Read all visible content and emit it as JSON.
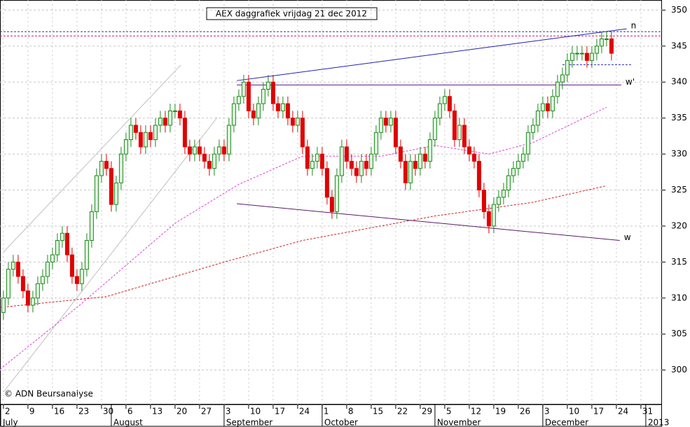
{
  "chart_data": {
    "type": "candlestick",
    "title": "AEX daggrafiek vrijdag 21 dec 2012",
    "copyright": "© ADN Beursanalyse",
    "x": [
      0,
      1,
      2,
      3,
      4,
      5,
      6,
      7,
      8,
      9,
      10,
      11,
      12,
      13,
      14,
      15,
      16,
      17,
      18,
      19,
      20,
      21,
      22,
      23,
      24,
      25,
      26,
      27,
      28,
      29,
      30,
      31,
      32,
      33,
      34,
      35,
      36,
      37,
      38,
      39,
      40,
      41,
      42,
      43,
      44,
      45,
      46,
      47,
      48,
      49,
      50,
      51,
      52,
      53,
      54,
      55,
      56,
      57,
      58,
      59,
      60,
      61,
      62,
      63,
      64,
      65,
      66,
      67,
      68,
      69,
      70,
      71,
      72,
      73,
      74,
      75,
      76,
      77,
      78,
      79,
      80,
      81,
      82,
      83,
      84,
      85,
      86,
      87,
      88,
      89,
      90,
      91,
      92,
      93,
      94,
      95,
      96,
      97,
      98,
      99,
      100,
      101,
      102,
      103,
      104,
      105,
      106,
      107,
      108,
      109,
      110,
      111,
      112,
      113,
      114,
      115,
      116,
      117,
      118,
      119,
      120,
      121,
      122,
      123,
      124
    ],
    "open": [
      308,
      310,
      314,
      315,
      313,
      311,
      309,
      310,
      312,
      313,
      315,
      316,
      318,
      319,
      316,
      313,
      312,
      314,
      318,
      322,
      327,
      329,
      328,
      323,
      326,
      330,
      332,
      334,
      333,
      331,
      333,
      332,
      334,
      335,
      334,
      336,
      336,
      335,
      331,
      330,
      331,
      330,
      329,
      328,
      330,
      331,
      330,
      334,
      337,
      338,
      340,
      336,
      335,
      337,
      339,
      340,
      337,
      336,
      337,
      335,
      334,
      335,
      331,
      328,
      329,
      330,
      328,
      324,
      322,
      327,
      331,
      329,
      328,
      327,
      329,
      328,
      330,
      333,
      335,
      334,
      335,
      331,
      329,
      326,
      329,
      328,
      330,
      329,
      332,
      335,
      337,
      338,
      336,
      332,
      334,
      331,
      330,
      329,
      325,
      322,
      320,
      323,
      324,
      325,
      327,
      328,
      329,
      330,
      333,
      334,
      336,
      337,
      336,
      338,
      340,
      341,
      343,
      344,
      344,
      344,
      343,
      344,
      345,
      346,
      346
    ],
    "high": [
      311,
      315,
      316,
      316,
      314,
      312,
      311,
      313,
      314,
      316,
      317,
      319,
      320,
      320,
      317,
      314,
      315,
      319,
      323,
      328,
      330,
      330,
      329,
      327,
      331,
      333,
      335,
      335,
      334,
      334,
      334,
      335,
      336,
      336,
      337,
      337,
      337,
      336,
      332,
      332,
      332,
      331,
      330,
      331,
      332,
      332,
      335,
      338,
      339,
      341,
      341,
      337,
      338,
      340,
      341,
      341,
      338,
      338,
      338,
      336,
      336,
      336,
      332,
      330,
      331,
      331,
      329,
      325,
      328,
      332,
      332,
      330,
      329,
      330,
      330,
      331,
      334,
      336,
      336,
      336,
      336,
      332,
      330,
      330,
      330,
      331,
      331,
      333,
      336,
      338,
      339,
      339,
      337,
      335,
      335,
      332,
      331,
      330,
      326,
      323,
      324,
      325,
      326,
      328,
      329,
      330,
      331,
      334,
      335,
      337,
      338,
      338,
      339,
      341,
      342,
      344,
      345,
      345,
      345,
      345,
      345,
      346,
      347,
      347,
      347
    ],
    "low": [
      307,
      309,
      313,
      312,
      310,
      308,
      308,
      309,
      311,
      312,
      314,
      315,
      317,
      315,
      312,
      311,
      311,
      313,
      317,
      321,
      326,
      327,
      322,
      322,
      325,
      329,
      331,
      332,
      330,
      330,
      331,
      331,
      333,
      333,
      333,
      335,
      334,
      330,
      329,
      329,
      329,
      328,
      327,
      327,
      329,
      329,
      329,
      333,
      336,
      337,
      335,
      334,
      334,
      336,
      338,
      336,
      335,
      335,
      334,
      333,
      333,
      330,
      327,
      327,
      328,
      327,
      323,
      321,
      321,
      326,
      328,
      327,
      326,
      326,
      327,
      327,
      329,
      332,
      333,
      333,
      330,
      328,
      325,
      325,
      327,
      327,
      328,
      328,
      331,
      334,
      336,
      335,
      331,
      331,
      330,
      329,
      328,
      324,
      321,
      319,
      319,
      322,
      323,
      324,
      326,
      327,
      328,
      329,
      332,
      333,
      335,
      335,
      335,
      337,
      339,
      340,
      342,
      343,
      343,
      342,
      342,
      343,
      344,
      345,
      343
    ],
    "close": [
      310,
      314,
      315,
      313,
      311,
      309,
      310,
      312,
      313,
      315,
      316,
      318,
      319,
      316,
      313,
      312,
      314,
      318,
      322,
      327,
      329,
      328,
      323,
      326,
      330,
      332,
      334,
      333,
      331,
      333,
      332,
      334,
      335,
      334,
      336,
      336,
      335,
      331,
      330,
      331,
      330,
      329,
      328,
      330,
      331,
      330,
      334,
      337,
      338,
      340,
      336,
      335,
      337,
      339,
      340,
      337,
      336,
      337,
      335,
      334,
      335,
      331,
      328,
      329,
      330,
      328,
      324,
      322,
      327,
      331,
      329,
      328,
      327,
      329,
      328,
      330,
      333,
      335,
      334,
      335,
      331,
      329,
      326,
      329,
      328,
      330,
      329,
      332,
      335,
      337,
      338,
      336,
      332,
      334,
      331,
      330,
      329,
      325,
      322,
      320,
      323,
      324,
      325,
      327,
      328,
      329,
      330,
      333,
      334,
      336,
      337,
      336,
      338,
      340,
      341,
      343,
      344,
      344,
      344,
      343,
      344,
      345,
      346,
      346,
      344
    ],
    "up_color": "#1a8a1a",
    "down_color": "#e00000",
    "moving_averages": [
      {
        "color": "#e040e0",
        "x": [
          -0.7,
          15,
          35,
          48,
          61,
          77,
          88,
          99,
          108,
          123
        ],
        "values": [
          300.1,
          308.7,
          320.4,
          325.8,
          329.7,
          329.7,
          331.2,
          330,
          331.6,
          336.5
        ]
      },
      {
        "color": "#d02020",
        "x": [
          -0.7,
          21,
          45,
          61,
          88,
          108,
          123
        ],
        "values": [
          308.7,
          310.2,
          315,
          318,
          321.4,
          323.3,
          325.6
        ]
      }
    ],
    "trend_lines": [
      {
        "label": "n",
        "color": "#2020b0",
        "x": [
          47.6,
          127.1
        ],
        "values": [
          340.2,
          347.4
        ]
      },
      {
        "label": "w'",
        "color": "#5a1a8a",
        "x": [
          47.6,
          126
        ],
        "values": [
          339.6,
          339.6
        ]
      },
      {
        "label": "w",
        "color": "#5a1a6a",
        "x": [
          47.6,
          125.7
        ],
        "values": [
          323.1,
          318
        ]
      }
    ],
    "hlines": [
      {
        "color": "#3030c0",
        "value": 347
      },
      {
        "color": "#d02060",
        "value": 346.4
      },
      {
        "color": "#3030c0",
        "value": 342.4,
        "x": [
          114,
          128
        ]
      }
    ],
    "xlim": [
      -0.7,
      134.3
    ],
    "ylim": [
      295.2,
      351.4
    ],
    "xticks": [
      {
        "value": 0,
        "label": "2"
      },
      {
        "value": 5,
        "label": "9"
      },
      {
        "value": 10,
        "label": "16"
      },
      {
        "value": 15,
        "label": "23"
      },
      {
        "value": 20,
        "label": "30"
      },
      {
        "value": 25,
        "label": "6"
      },
      {
        "value": 30,
        "label": "13"
      },
      {
        "value": 35,
        "label": "20"
      },
      {
        "value": 40,
        "label": "27"
      },
      {
        "value": 45,
        "label": "3"
      },
      {
        "value": 50,
        "label": "10"
      },
      {
        "value": 55,
        "label": "17"
      },
      {
        "value": 60,
        "label": "24"
      },
      {
        "value": 65,
        "label": "1"
      },
      {
        "value": 70,
        "label": "8"
      },
      {
        "value": 75,
        "label": "15"
      },
      {
        "value": 80,
        "label": "22"
      },
      {
        "value": 85,
        "label": "29"
      },
      {
        "value": 90,
        "label": "5"
      },
      {
        "value": 95,
        "label": "12"
      },
      {
        "value": 100,
        "label": "19"
      },
      {
        "value": 105,
        "label": "26"
      },
      {
        "value": 110,
        "label": "3"
      },
      {
        "value": 115,
        "label": "10"
      },
      {
        "value": 120,
        "label": "17"
      },
      {
        "value": 125,
        "label": "24"
      },
      {
        "value": 130,
        "label": "31"
      }
    ],
    "month_ticks": [
      {
        "value": -0.7,
        "label": "July"
      },
      {
        "value": 22,
        "label": "August"
      },
      {
        "value": 45,
        "label": "September"
      },
      {
        "value": 65,
        "label": "October"
      },
      {
        "value": 88,
        "label": "November"
      },
      {
        "value": 110,
        "label": "December"
      },
      {
        "value": 131,
        "label": "2013"
      }
    ],
    "yticks": [
      300,
      305,
      310,
      315,
      320,
      325,
      330,
      335,
      340,
      345,
      350
    ],
    "grid": true
  }
}
